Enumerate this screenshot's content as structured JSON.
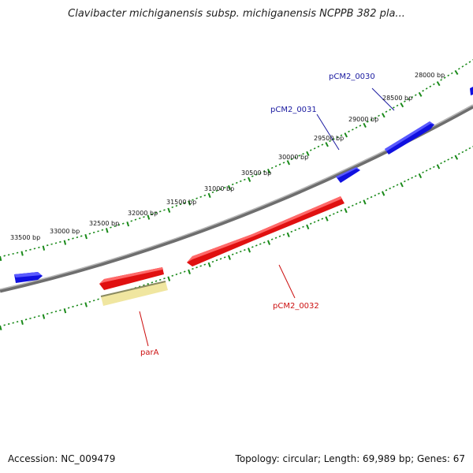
{
  "title": "Clavibacter michiganensis subsp. michiganensis NCPPB 382 pla...",
  "footer": {
    "accession": "Accession: NC_009479",
    "summary": "Topology: circular; Length: 69,989 bp; Genes: 67"
  },
  "colors": {
    "backbone": "#8c8c8c",
    "forward_gene": "#1010e0",
    "reverse_gene": "#e01010",
    "feature": "#f0e6a0",
    "ticks": "#1a8a1a",
    "forward_label": "#1a1aa0",
    "reverse_label": "#cc1010"
  },
  "scale": {
    "labels": [
      "28000 bp",
      "28500 bp",
      "29000 bp",
      "29500 bp",
      "30000 bp",
      "30500 bp",
      "31000 bp",
      "31500 bp",
      "32000 bp",
      "32500 bp",
      "33000 bp",
      "33500 bp"
    ]
  },
  "genes": {
    "pCM2_0030": "pCM2_0030",
    "pCM2_0031": "pCM2_0031",
    "pCM2_0032": "pCM2_0032",
    "parA": "parA"
  }
}
